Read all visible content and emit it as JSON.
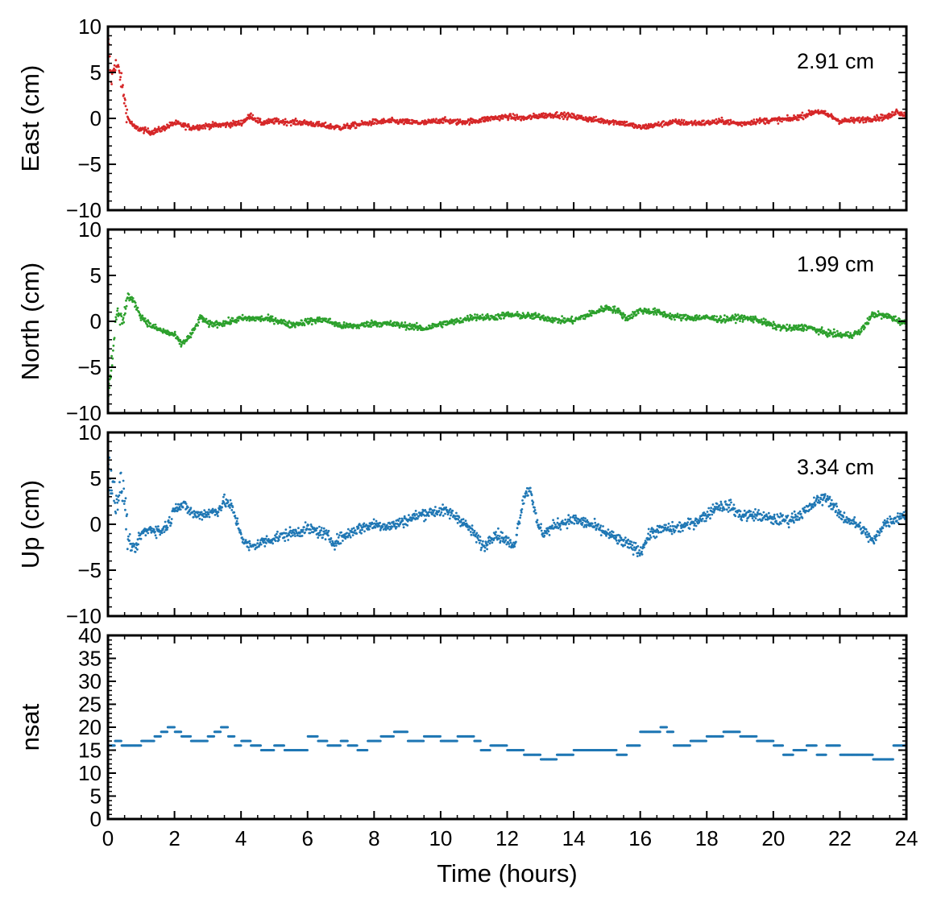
{
  "chart_data": {
    "type": "scatter",
    "x_axis": {
      "label": "Time (hours)",
      "range": [
        0,
        24
      ],
      "ticks": [
        0,
        2,
        4,
        6,
        8,
        10,
        12,
        14,
        16,
        18,
        20,
        22,
        24
      ],
      "tick_labels": [
        "0",
        "2",
        "4",
        "6",
        "8",
        "10",
        "12",
        "14",
        "16",
        "18",
        "20",
        "22",
        "24"
      ]
    },
    "panels": [
      {
        "id": "east",
        "ylabel": "East (cm)",
        "ylim": [
          -10,
          10
        ],
        "yticks": [
          -10,
          -5,
          0,
          5,
          10
        ],
        "ytick_labels": [
          "−10",
          "−5",
          "0",
          "5",
          "10"
        ],
        "annotation": "2.91 cm",
        "color": "#d62728",
        "series": {
          "x": [
            0,
            0.1,
            0.2,
            0.3,
            0.4,
            0.5,
            0.6,
            0.8,
            1,
            1.3,
            1.6,
            2,
            2.5,
            3,
            3.5,
            4,
            4.3,
            4.6,
            5,
            5.5,
            6,
            6.5,
            7,
            7.5,
            8,
            8.5,
            9,
            9.5,
            10,
            10.5,
            11,
            11.5,
            12,
            12.5,
            13,
            13.5,
            14,
            14.5,
            15,
            15.5,
            16,
            16.5,
            17,
            17.5,
            18,
            18.5,
            19,
            19.5,
            20,
            20.5,
            21,
            21.3,
            21.7,
            22,
            22.5,
            23,
            23.5,
            23.7,
            24
          ],
          "y": [
            9,
            4,
            6,
            5.5,
            4,
            2,
            0,
            -1,
            -1.2,
            -1.5,
            -1.2,
            -0.5,
            -1,
            -0.8,
            -0.7,
            -0.5,
            0.3,
            -0.5,
            -0.3,
            -0.4,
            -0.5,
            -0.8,
            -1,
            -0.7,
            -0.4,
            -0.3,
            -0.4,
            -0.5,
            -0.2,
            -0.4,
            -0.3,
            0,
            0.2,
            0,
            0.3,
            0.4,
            0.2,
            -0.1,
            -0.3,
            -0.5,
            -1,
            -0.7,
            -0.4,
            -0.5,
            -0.5,
            -0.3,
            -0.6,
            -0.3,
            -0.2,
            -0.1,
            0.4,
            0.8,
            0.3,
            -0.3,
            -0.2,
            0,
            0.2,
            0.8,
            0.3
          ]
        }
      },
      {
        "id": "north",
        "ylabel": "North (cm)",
        "ylim": [
          -10,
          10
        ],
        "yticks": [
          -10,
          -5,
          0,
          5,
          10
        ],
        "ytick_labels": [
          "−10",
          "−5",
          "0",
          "5",
          "10"
        ],
        "annotation": "1.99 cm",
        "color": "#2ca02c",
        "series": {
          "x": [
            0,
            0.1,
            0.2,
            0.3,
            0.4,
            0.5,
            0.6,
            0.8,
            1,
            1.3,
            1.6,
            2,
            2.2,
            2.5,
            2.8,
            3,
            3.5,
            4,
            4.5,
            5,
            5.5,
            6,
            6.5,
            7,
            7.5,
            8,
            8.5,
            9,
            9.5,
            10,
            10.5,
            11,
            11.5,
            12,
            12.5,
            13,
            13.5,
            14,
            14.5,
            15,
            15.3,
            15.6,
            16,
            16.5,
            17,
            17.5,
            18,
            18.5,
            19,
            19.5,
            20,
            20.5,
            21,
            21.5,
            22,
            22.3,
            22.6,
            23,
            23.5,
            24
          ],
          "y": [
            -8,
            -5,
            -1,
            1,
            0,
            1,
            2.8,
            2,
            0.5,
            -0.5,
            -1,
            -1.5,
            -2.5,
            -1.5,
            0.5,
            -0.3,
            -0.2,
            0.3,
            0.3,
            0.2,
            -0.4,
            0,
            0.2,
            -0.5,
            -0.5,
            -0.2,
            -0.3,
            -0.5,
            -0.8,
            -0.3,
            0,
            0.5,
            0.4,
            0.7,
            0.6,
            0.5,
            0.1,
            0.1,
            0.8,
            1.5,
            1.2,
            0.3,
            1.2,
            1,
            0.5,
            0.4,
            0.4,
            0.2,
            0.4,
            0.2,
            -0.5,
            -0.8,
            -0.6,
            -1.2,
            -1.5,
            -1.5,
            -1.2,
            0.8,
            0.5,
            -0.3
          ]
        }
      },
      {
        "id": "up",
        "ylabel": "Up (cm)",
        "ylim": [
          -10,
          10
        ],
        "yticks": [
          -10,
          -5,
          0,
          5,
          10
        ],
        "ytick_labels": [
          "−10",
          "−5",
          "0",
          "5",
          "10"
        ],
        "annotation": "3.34 cm",
        "color": "#1f77b4",
        "series": {
          "x": [
            0,
            0.1,
            0.2,
            0.3,
            0.4,
            0.5,
            0.6,
            0.8,
            1,
            1.3,
            1.6,
            1.9,
            2,
            2.3,
            2.6,
            3,
            3.3,
            3.5,
            3.7,
            3.9,
            4.1,
            4.3,
            4.6,
            5,
            5.5,
            6,
            6.5,
            6.8,
            7,
            7.5,
            8,
            8.5,
            9,
            9.5,
            10,
            10.3,
            10.6,
            11,
            11.3,
            11.6,
            11.9,
            12.2,
            12.5,
            12.7,
            12.9,
            13.1,
            13.5,
            14,
            14.5,
            15,
            15.5,
            15.8,
            16,
            16.3,
            16.7,
            17,
            17.5,
            18,
            18.3,
            18.7,
            19,
            19.5,
            20,
            20.5,
            21,
            21.3,
            21.6,
            22,
            22.5,
            22.8,
            23,
            23.3,
            23.6,
            24
          ],
          "y": [
            7,
            5,
            3,
            3,
            4,
            3,
            -1.5,
            -3,
            -1,
            -0.5,
            -0.8,
            0.5,
            2,
            2,
            1,
            1.2,
            1.5,
            2.5,
            2,
            0,
            -2,
            -2.5,
            -2,
            -1.5,
            -1,
            -0.5,
            -1,
            -2,
            -1.5,
            -0.5,
            0,
            -0.2,
            0.5,
            1.2,
            1.5,
            1.2,
            0.5,
            -1,
            -2.5,
            -1,
            -1.5,
            -2.5,
            3,
            4,
            0,
            -1,
            0,
            0.5,
            0,
            -1,
            -2,
            -2.5,
            -3,
            -1,
            -0.5,
            -0.5,
            0,
            1,
            2,
            2,
            1,
            1,
            0.5,
            0.5,
            1.5,
            2.5,
            3,
            1,
            0,
            -1,
            -2,
            0,
            0.5,
            1.2
          ]
        }
      },
      {
        "id": "nsat",
        "ylabel": "nsat",
        "ylim": [
          0,
          40
        ],
        "yticks": [
          0,
          5,
          10,
          15,
          20,
          25,
          30,
          35,
          40
        ],
        "ytick_labels": [
          "0",
          "5",
          "10",
          "15",
          "20",
          "25",
          "30",
          "35",
          "40"
        ],
        "annotation": "",
        "color": "#1f77b4",
        "series": {
          "x": [
            0,
            0.2,
            0.4,
            0.6,
            1,
            1.4,
            1.6,
            1.8,
            2,
            2.2,
            2.5,
            3,
            3.2,
            3.4,
            3.6,
            3.8,
            4,
            4.3,
            4.6,
            5,
            5.3,
            5.6,
            6,
            6.3,
            6.6,
            7,
            7.2,
            7.5,
            7.8,
            8.2,
            8.6,
            9,
            9.5,
            10,
            10.5,
            11,
            11.2,
            11.5,
            12,
            12.5,
            13,
            13.5,
            14,
            14.5,
            15,
            15.3,
            15.6,
            16,
            16.3,
            16.6,
            16.8,
            17,
            17.5,
            18,
            18.5,
            19,
            19.5,
            20,
            20.3,
            20.6,
            21,
            21.3,
            21.6,
            22,
            22.5,
            23,
            23.3,
            23.6,
            24
          ],
          "y": [
            16,
            17,
            16,
            16,
            17,
            18,
            19,
            20,
            19,
            18,
            17,
            18,
            19,
            20,
            18,
            16,
            17,
            16,
            15,
            16,
            15,
            15,
            18,
            17,
            16,
            17,
            16,
            15,
            17,
            18,
            19,
            17,
            18,
            17,
            18,
            17,
            15,
            16,
            15,
            14,
            13,
            14,
            15,
            15,
            15,
            14,
            16,
            19,
            19,
            20,
            19,
            16,
            17,
            18,
            19,
            18,
            17,
            16,
            14,
            15,
            16,
            14,
            16,
            14,
            14,
            13,
            13,
            16,
            17
          ]
        }
      }
    ]
  }
}
